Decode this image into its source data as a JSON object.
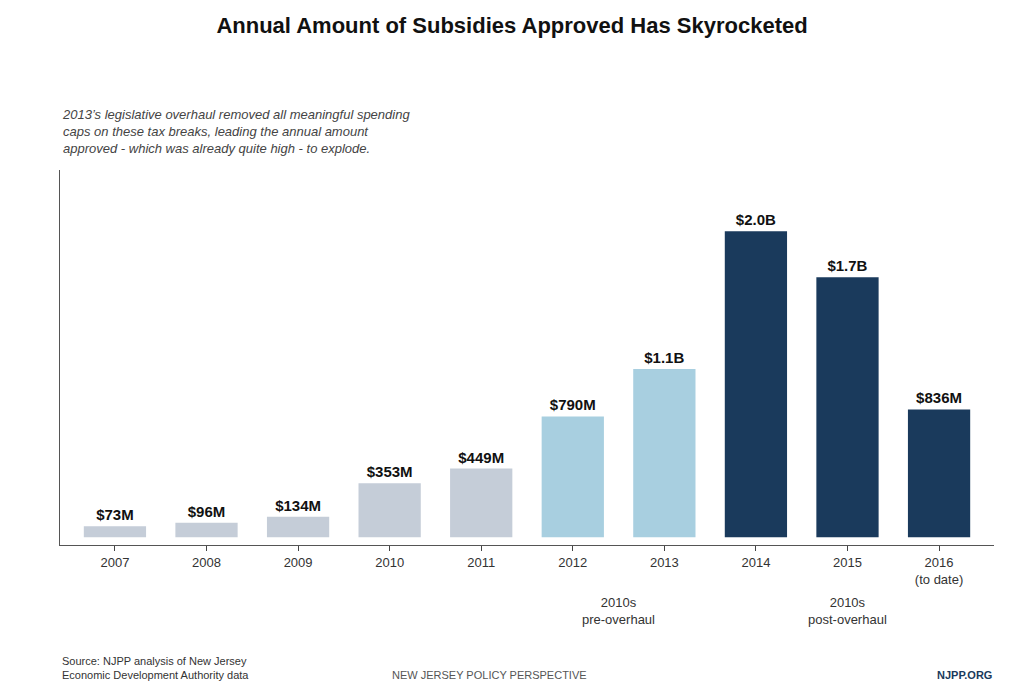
{
  "chart_data": {
    "type": "bar",
    "title": "Annual Amount of Subsidies Approved Has Skyrocketed",
    "subtitle": "2013’s legislative overhaul removed all meaningful spending\ncaps on these tax breaks, leading the annual amount\napproved - which was already quite high - to explode.",
    "categories": [
      "2007",
      "2008",
      "2009",
      "2010",
      "2011",
      "2012",
      "2013",
      "2014",
      "2015",
      "2016\n(to date)"
    ],
    "values": [
      73,
      96,
      134,
      353,
      449,
      790,
      1100,
      2000,
      1700,
      836
    ],
    "value_labels": [
      "$73M",
      "$96M",
      "$134M",
      "$353M",
      "$449M",
      "$790M",
      "$1.1B",
      "$2.0B",
      "$1.7B",
      "$836M"
    ],
    "data_labels": true,
    "colors": [
      "#c5cdd8",
      "#c5cdd8",
      "#c5cdd8",
      "#c5cdd8",
      "#c5cdd8",
      "#a8cfe0",
      "#a8cfe0",
      "#1a3a5c",
      "#1a3a5c",
      "#1a3a5c"
    ],
    "ylim": [
      -50,
      2400
    ],
    "yticks": [],
    "tick_labels": "x",
    "grid": false,
    "annotations": [
      {
        "text": "2010s\npre-overhaul",
        "categories": [
          "2012",
          "2013"
        ]
      },
      {
        "text": "2010s\npost-overhaul",
        "categories": [
          "2014",
          "2015",
          "2016\n(to date)"
        ]
      }
    ],
    "footer": [
      "Source: NJPP analysis of New Jersey\nEconomic Development Authority data",
      "NEW JERSEY POLICY PERSPECTIVE",
      "NJPP.ORG"
    ]
  }
}
